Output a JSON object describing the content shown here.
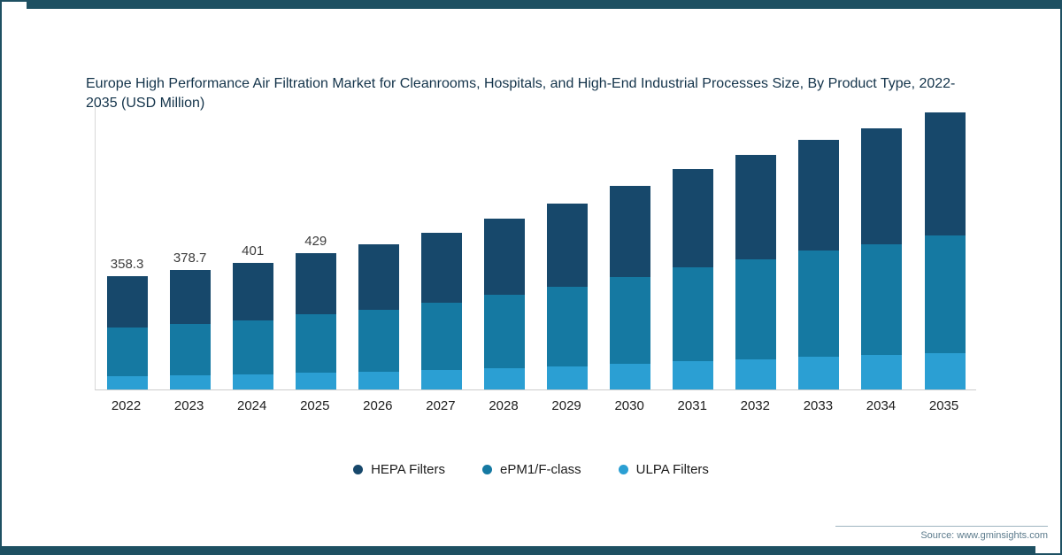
{
  "title": "Europe High Performance Air Filtration Market for Cleanrooms, Hospitals, and High-End Industrial Processes Size, By Product Type, 2022-2035 (USD Million)",
  "source": "Source: www.gminsights.com",
  "colors": {
    "frame": "#1E5062",
    "hepa": "#17486B",
    "epm1": "#1579A2",
    "ulpa": "#2B9FD3",
    "axis": "#cccccc"
  },
  "chart_data": {
    "type": "bar",
    "stacked": true,
    "title": "Europe High Performance Air Filtration Market for Cleanrooms, Hospitals, and High-End Industrial Processes Size, By Product Type, 2022-2035 (USD Million)",
    "xlabel": "",
    "ylabel": "USD Million",
    "legend_position": "bottom",
    "grid": false,
    "categories": [
      "2022",
      "2023",
      "2024",
      "2025",
      "2026",
      "2027",
      "2028",
      "2029",
      "2030",
      "2031",
      "2032",
      "2033",
      "2034",
      "2035"
    ],
    "bar_total_labels": [
      "358.3",
      "378.7",
      "401",
      "429",
      "",
      "",
      "",
      "",
      "",
      "",
      "",
      "",
      "",
      ""
    ],
    "totals_estimated": [
      358.3,
      378.7,
      401,
      429,
      460,
      495,
      540,
      590,
      645,
      695,
      740,
      790,
      825,
      875
    ],
    "series": [
      {
        "name": "ULPA Filters",
        "color": "#2B9FD3",
        "values": [
          42,
          45,
          48,
          52,
          56,
          61,
          67,
          74,
          82,
          89,
          96,
          103,
          108,
          115
        ]
      },
      {
        "name": "ePM1/F-class",
        "color": "#1579A2",
        "values": [
          154,
          163,
          172,
          184,
          197,
          212,
          231,
          252,
          275,
          296,
          315,
          336,
          351,
          372
        ]
      },
      {
        "name": "HEPA Filters",
        "color": "#17486B",
        "values": [
          162,
          171,
          181,
          193,
          207,
          222,
          242,
          264,
          288,
          310,
          329,
          351,
          366,
          388
        ]
      }
    ],
    "legend_order": [
      "HEPA Filters",
      "ePM1/F-class",
      "ULPA Filters"
    ],
    "legend_colors": [
      "#17486B",
      "#1579A2",
      "#2B9FD3"
    ]
  }
}
